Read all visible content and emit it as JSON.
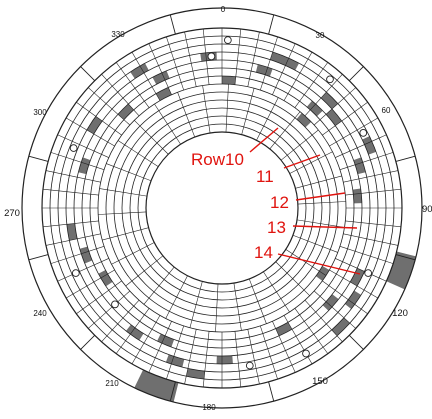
{
  "angle_labels": [
    {
      "text": "0",
      "deg": 0
    },
    {
      "text": "30",
      "deg": 30
    },
    {
      "text": "60",
      "deg": 60
    },
    {
      "text": "90",
      "deg": 90
    },
    {
      "text": "120",
      "deg": 120
    },
    {
      "text": "150",
      "deg": 150
    },
    {
      "text": "180",
      "deg": 180
    },
    {
      "text": "210",
      "deg": 210
    },
    {
      "text": "240",
      "deg": 240
    },
    {
      "text": "270",
      "deg": 270
    },
    {
      "text": "300",
      "deg": 300
    },
    {
      "text": "330",
      "deg": 330
    }
  ],
  "row_callouts": [
    {
      "text": "Row10",
      "ring": 10
    },
    {
      "text": "11",
      "ring": 11
    },
    {
      "text": "12",
      "ring": 12
    },
    {
      "text": "13",
      "ring": 13
    },
    {
      "text": "14",
      "ring": 14
    }
  ],
  "colors": {
    "line": "#222222",
    "shade": "#6f6f6f",
    "callout": "#e0140f"
  }
}
